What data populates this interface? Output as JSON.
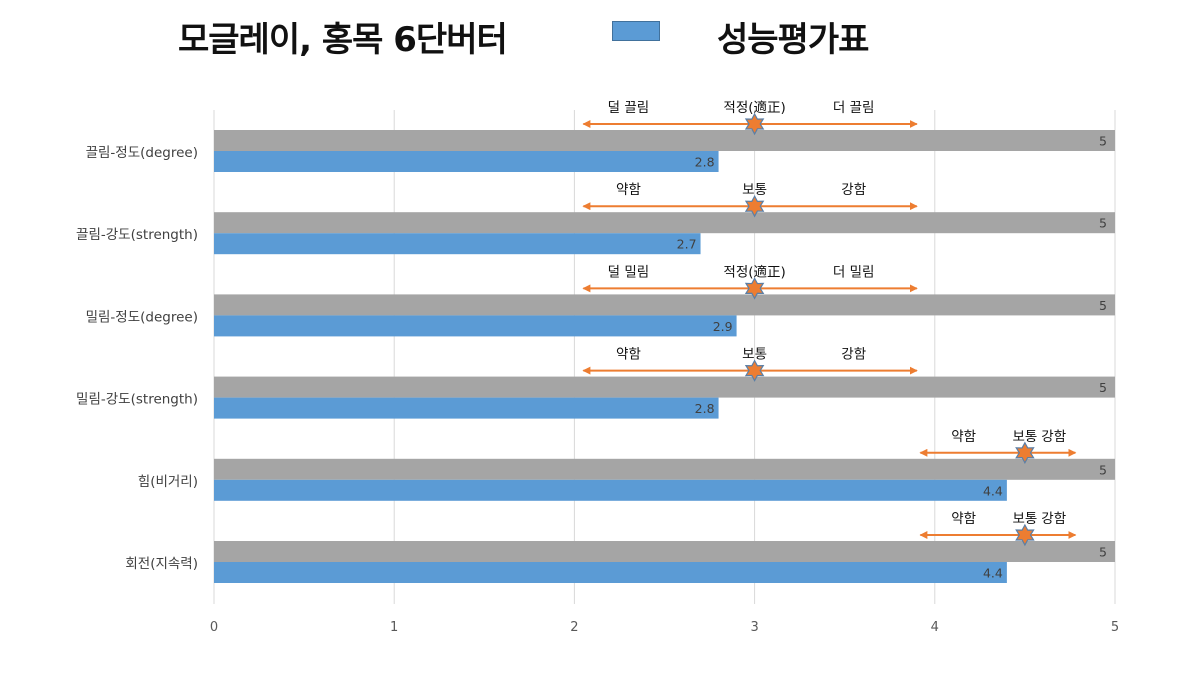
{
  "title": "모글레이, 홍목 6단버터",
  "legend": {
    "label": "성능평가표",
    "color": "#5b9bd5"
  },
  "colors": {
    "max_bar": "#a5a5a5",
    "value_bar": "#5b9bd5",
    "arrow": "#ed7d31",
    "star": "#ed7d31",
    "star_outline": "#5b7fa6"
  },
  "chart_data": {
    "type": "bar",
    "orientation": "horizontal",
    "categories": [
      "끌림-정도(degree)",
      "끌림-강도(strength)",
      "밀림-정도(degree)",
      "밀림-강도(strength)",
      "힘(비거리)",
      "회전(지속력)"
    ],
    "series": [
      {
        "values": [
          5,
          5,
          5,
          5,
          5,
          5
        ],
        "color": "#a5a5a5"
      },
      {
        "values": [
          2.8,
          2.7,
          2.9,
          2.8,
          4.4,
          4.4
        ],
        "color": "#5b9bd5"
      }
    ],
    "xlim": [
      0,
      5
    ],
    "xticks": [
      "0",
      "1",
      "2",
      "3",
      "4",
      "5"
    ],
    "grid": "vertical",
    "annotations": [
      {
        "left": "덜 끌림",
        "mid": "적정(適正)",
        "right": "더 끌림",
        "from": 2.05,
        "to": 3.9,
        "mark": 3.0
      },
      {
        "left": "약함",
        "mid": "보통",
        "right": "강함",
        "from": 2.05,
        "to": 3.9,
        "mark": 3.0
      },
      {
        "left": "덜 밀림",
        "mid": "적정(適正)",
        "right": "더 밀림",
        "from": 2.05,
        "to": 3.9,
        "mark": 3.0
      },
      {
        "left": "약함",
        "mid": "보통",
        "right": "강함",
        "from": 2.05,
        "to": 3.9,
        "mark": 3.0
      },
      {
        "left": "약함",
        "mid": "보통",
        "right": "강함",
        "from": 3.92,
        "to": 4.78,
        "mark": 4.5
      },
      {
        "left": "약함",
        "mid": "보통",
        "right": "강함",
        "from": 3.92,
        "to": 4.78,
        "mark": 4.5
      }
    ]
  }
}
